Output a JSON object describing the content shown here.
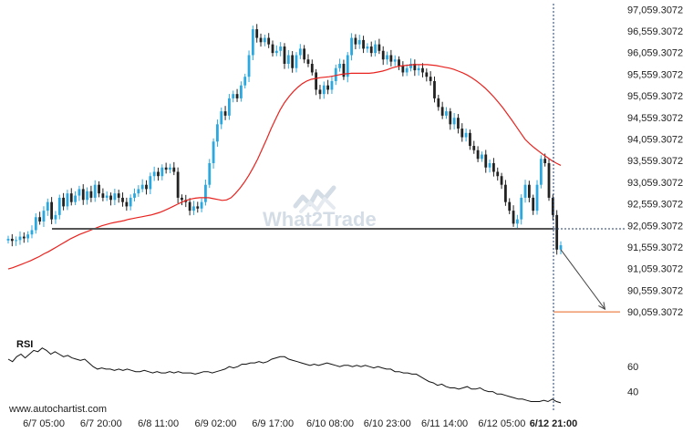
{
  "watermark": "What2Trade",
  "credit": "www.autochartist.com",
  "colors": {
    "bull": "#2ba8df",
    "bear": "#222222",
    "ma": "#e8231f",
    "support": "#555555",
    "target": "#e8631f",
    "rsi": "#111111",
    "vline": "#1f3d6b",
    "watermark": "#d4dde5"
  },
  "chart_data": [
    {
      "type": "candlestick",
      "title": "",
      "xlabel": "",
      "ylabel": "",
      "x_tick_labels": [
        "6/7 05:00",
        "6/7 20:00",
        "6/8 11:00",
        "6/9 02:00",
        "6/9 17:00",
        "6/10 08:00",
        "6/10 23:00",
        "6/11 14:00",
        "6/12 05:00",
        "6/12 21:00"
      ],
      "y_tick_labels": [
        "97,059.3072",
        "96,559.3072",
        "96,059.3072",
        "95,559.3072",
        "95,059.3072",
        "94,559.3072",
        "94,059.3072",
        "93,559.3072",
        "93,059.3072",
        "92,559.3072",
        "92,059.3072",
        "91,559.3072",
        "91,059.3072",
        "90,559.3072",
        "90,059.3072"
      ],
      "ylim": [
        89850,
        97150
      ],
      "grid": false,
      "support_level": 91980,
      "target_level": 90059.3072,
      "forecast_line": [
        [
          150,
          91500
        ],
        [
          162,
          90120
        ]
      ],
      "series": [
        {
          "name": "",
          "kind": "close",
          "values": [
            91750,
            91700,
            91720,
            91800,
            91760,
            91850,
            91950,
            92250,
            92150,
            92400,
            92600,
            92200,
            92300,
            92700,
            92500,
            92800,
            92600,
            92750,
            92900,
            92650,
            92850,
            92700,
            93000,
            92800,
            92700,
            92750,
            92650,
            92800,
            92700,
            92600,
            92500,
            92700,
            92800,
            92900,
            93000,
            92900,
            93200,
            93300,
            93200,
            93400,
            93350,
            93400,
            93300,
            92700,
            92650,
            92600,
            92400,
            92500,
            92450,
            92600,
            93000,
            93500,
            94000,
            94400,
            94700,
            94600,
            95000,
            95100,
            95000,
            95300,
            95500,
            96000,
            96600,
            96400,
            96300,
            96400,
            96250,
            96050,
            96100,
            96200,
            95800,
            96000,
            95700,
            96000,
            96150,
            95900,
            95800,
            95600,
            95200,
            95100,
            95300,
            95200,
            95400,
            95700,
            95800,
            95500,
            96000,
            96400,
            96250,
            96350,
            96150,
            96200,
            96050,
            96250,
            96100,
            95900,
            96000,
            95850,
            95900,
            95750,
            95600,
            95700,
            95800,
            95650,
            95700,
            95600,
            95500,
            95400,
            95000,
            94800,
            94600,
            94700,
            94400,
            94550,
            94300,
            94100,
            94200,
            93900,
            93800,
            93600,
            93700,
            93400,
            93500,
            93300,
            93200,
            93000,
            92600,
            92400,
            92100,
            92200,
            92700,
            93000,
            92700,
            92400,
            93000,
            93600,
            93500,
            92700,
            92300,
            91500,
            91600
          ]
        },
        {
          "name": "",
          "kind": "moving-average",
          "values": [
            91050,
            91080,
            91120,
            91160,
            91200,
            91240,
            91290,
            91340,
            91400,
            91450,
            91510,
            91570,
            91630,
            91690,
            91750,
            91800,
            91850,
            91890,
            91930,
            91970,
            92010,
            92050,
            92080,
            92110,
            92130,
            92150,
            92170,
            92200,
            92220,
            92240,
            92260,
            92280,
            92300,
            92330,
            92360,
            92400,
            92450,
            92500,
            92550,
            92600,
            92640,
            92670,
            92690,
            92700,
            92700,
            92700,
            92680,
            92660,
            92640,
            92650,
            92700,
            92800,
            92920,
            93060,
            93220,
            93400,
            93600,
            93830,
            94060,
            94300,
            94520,
            94730,
            94900,
            95040,
            95160,
            95260,
            95340,
            95400,
            95440,
            95460,
            95480,
            95490,
            95500,
            95520,
            95540,
            95560,
            95570,
            95580,
            95580,
            95580,
            95580,
            95580,
            95590,
            95610,
            95630,
            95660,
            95700,
            95730,
            95750,
            95760,
            95770,
            95780,
            95780,
            95780,
            95780,
            95770,
            95760,
            95740,
            95720,
            95700,
            95670,
            95630,
            95590,
            95540,
            95480,
            95410,
            95330,
            95240,
            95140,
            95030,
            94910,
            94780,
            94640,
            94500,
            94350,
            94200,
            94050,
            93950,
            93860,
            93780,
            93700,
            93630,
            93560,
            93500,
            93450
          ]
        }
      ]
    },
    {
      "type": "line",
      "title": "RSI",
      "xlabel": "",
      "ylabel": "",
      "y_tick_labels": [
        "60",
        "40"
      ],
      "y_ticks": [
        60,
        40
      ],
      "ylim": [
        28,
        85
      ],
      "grid": false,
      "series": [
        {
          "name": "RSI",
          "values": [
            66,
            64,
            68,
            70,
            67,
            70,
            73,
            72,
            75,
            73,
            70,
            72,
            70,
            68,
            69,
            67,
            66,
            65,
            66,
            63,
            60,
            58,
            59,
            58,
            58,
            57,
            58,
            57,
            58,
            57,
            56,
            56,
            57,
            56,
            55,
            56,
            55,
            55,
            56,
            55,
            56,
            55,
            55,
            55,
            54,
            55,
            56,
            56,
            55,
            56,
            57,
            58,
            60,
            59,
            60,
            62,
            62,
            63,
            63,
            64,
            63,
            64,
            66,
            67,
            68,
            68,
            66,
            65,
            64,
            63,
            62,
            61,
            62,
            61,
            62,
            63,
            62,
            61,
            60,
            61,
            61,
            60,
            61,
            60,
            61,
            60,
            59,
            60,
            59,
            58,
            58,
            56,
            56,
            55,
            55,
            54,
            54,
            52,
            50,
            48,
            47,
            45,
            46,
            44,
            43,
            43,
            42,
            43,
            44,
            42,
            42,
            43,
            41,
            40,
            40,
            38,
            38,
            37,
            36,
            35,
            34,
            34,
            33,
            32,
            32,
            32,
            33,
            32,
            34,
            32,
            31
          ]
        }
      ]
    }
  ]
}
